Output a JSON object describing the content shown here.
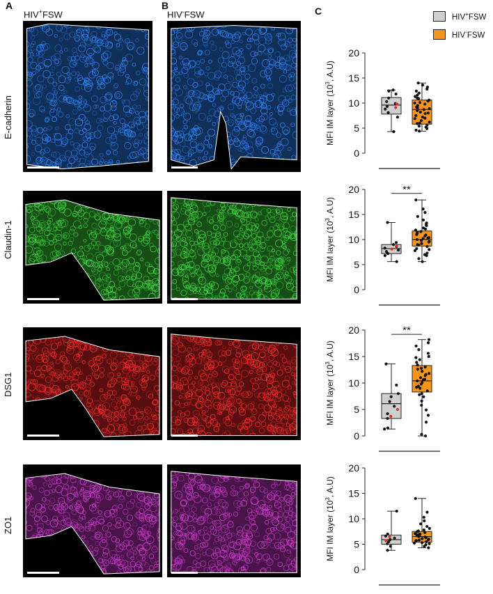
{
  "figure": {
    "panel_labels": [
      "A",
      "B",
      "C"
    ],
    "col_a_title": {
      "prefix": "HIV",
      "sup": "+",
      "suffix": "FSW"
    },
    "col_b_title": {
      "prefix": "HIV",
      "sup": "-",
      "suffix": "FSW"
    },
    "row_labels": [
      "E-cadherin",
      "Claudin-1",
      "DSG1",
      "ZO1"
    ],
    "stain_colors": {
      "E-cadherin": "#2f86ff",
      "Claudin-1": "#3ee03e",
      "DSG1": "#ff2a2a",
      "ZO1": "#d23ad2"
    },
    "legend": [
      {
        "prefix": "HIV",
        "sup": "+",
        "suffix": "FSW",
        "color": "#cfcfcf"
      },
      {
        "prefix": "HIV",
        "sup": "-",
        "suffix": "FSW",
        "color": "#f7941d"
      }
    ]
  },
  "chart_data": [
    {
      "type": "box",
      "marker": "E-cadherin",
      "ylabel": "MFI IM layer (10^3, A.U)",
      "ylim": [
        0,
        20
      ],
      "yticks": [
        0,
        5,
        10,
        15,
        20
      ],
      "significance": "",
      "groups": [
        {
          "name": "HIV+ FSW",
          "color": "#cfcfcf",
          "min": 4.3,
          "q1": 7.8,
          "median": 9.6,
          "q3": 11.1,
          "max": 12.6,
          "points": [
            4.3,
            7.2,
            8.1,
            8.8,
            9.3,
            9.9,
            10.3,
            11.0,
            11.8,
            12.4,
            12.6
          ],
          "highlight": [
            9.1,
            9.8
          ]
        },
        {
          "name": "HIV- FSW",
          "color": "#f7941d",
          "min": 4.4,
          "q1": 5.8,
          "median": 8.7,
          "q3": 10.6,
          "max": 14.0,
          "points": [
            4.4,
            4.6,
            4.9,
            5.2,
            5.4,
            5.6,
            5.9,
            6.2,
            6.5,
            6.9,
            7.2,
            7.5,
            7.9,
            8.2,
            8.5,
            8.7,
            8.9,
            9.2,
            9.5,
            9.8,
            10.1,
            10.4,
            10.6,
            10.9,
            11.3,
            11.6,
            12.0,
            12.4,
            12.8,
            13.2,
            13.6,
            14.0,
            6.0,
            7.0,
            8.0,
            9.0,
            10.0,
            11.0
          ]
        }
      ]
    },
    {
      "type": "box",
      "marker": "Claudin-1",
      "ylabel": "MFI IM layer (10^3, A.U)",
      "ylim": [
        0,
        20
      ],
      "yticks": [
        0,
        5,
        10,
        15,
        20
      ],
      "significance": "**",
      "groups": [
        {
          "name": "HIV+ FSW",
          "color": "#cfcfcf",
          "min": 5.6,
          "q1": 7.2,
          "median": 8.2,
          "q3": 9.0,
          "max": 13.4,
          "points": [
            5.6,
            6.8,
            7.2,
            7.6,
            7.9,
            8.3,
            8.6,
            9.0,
            9.4,
            13.4
          ],
          "highlight": [
            8.1,
            8.7
          ]
        },
        {
          "name": "HIV- FSW",
          "color": "#f7941d",
          "min": 5.6,
          "q1": 8.7,
          "median": 10.0,
          "q3": 11.7,
          "max": 17.9,
          "points": [
            5.6,
            6.2,
            6.8,
            7.3,
            7.8,
            8.2,
            8.6,
            8.9,
            9.2,
            9.5,
            9.8,
            10.0,
            10.2,
            10.4,
            10.7,
            11.0,
            11.3,
            11.6,
            11.9,
            12.3,
            12.8,
            13.3,
            13.9,
            14.6,
            15.4,
            16.1,
            17.9,
            9.0,
            9.6,
            10.3,
            10.9,
            11.4,
            8.0,
            12.1,
            7.0,
            13.0
          ]
        }
      ]
    },
    {
      "type": "box",
      "marker": "DSG1",
      "ylabel": "MFI IM layer (10^3, A.U)",
      "ylim": [
        0,
        20
      ],
      "yticks": [
        0,
        5,
        10,
        15,
        20
      ],
      "significance": "**",
      "groups": [
        {
          "name": "HIV+ FSW",
          "color": "#cfcfcf",
          "min": 1.3,
          "q1": 3.3,
          "median": 6.1,
          "q3": 8.0,
          "max": 13.6,
          "points": [
            1.3,
            1.5,
            3.3,
            4.2,
            5.6,
            6.5,
            7.4,
            8.0,
            9.6,
            13.6
          ],
          "highlight": [
            3.7,
            5.0
          ]
        },
        {
          "name": "HIV- FSW",
          "color": "#f7941d",
          "min": 0.0,
          "q1": 8.3,
          "median": 10.4,
          "q3": 13.3,
          "max": 18.2,
          "points": [
            0.0,
            0.3,
            2.6,
            3.9,
            4.9,
            5.8,
            6.6,
            7.4,
            8.0,
            8.5,
            9.0,
            9.4,
            9.8,
            10.1,
            10.4,
            10.7,
            11.0,
            11.4,
            11.8,
            12.2,
            12.6,
            13.0,
            13.4,
            13.9,
            14.4,
            15.0,
            15.6,
            16.3,
            17.0,
            17.6,
            18.2,
            9.2,
            10.6,
            11.6,
            12.8,
            7.8,
            14.8
          ]
        }
      ]
    },
    {
      "type": "box",
      "marker": "ZO1",
      "ylabel": "MFI IM layer (10^3, A.U)",
      "ylim": [
        0,
        20
      ],
      "yticks": [
        0,
        5,
        10,
        15,
        20
      ],
      "significance": "",
      "groups": [
        {
          "name": "HIV+ FSW",
          "color": "#cfcfcf",
          "min": 3.8,
          "q1": 5.0,
          "median": 5.9,
          "q3": 6.8,
          "max": 11.5,
          "points": [
            3.8,
            4.6,
            5.1,
            5.5,
            5.9,
            6.2,
            6.6,
            7.0,
            11.5
          ],
          "highlight": [
            5.7,
            6.4
          ]
        },
        {
          "name": "HIV- FSW",
          "color": "#f7941d",
          "min": 4.3,
          "q1": 5.4,
          "median": 6.5,
          "q3": 7.5,
          "max": 14.0,
          "points": [
            4.3,
            4.6,
            4.9,
            5.1,
            5.3,
            5.5,
            5.7,
            5.9,
            6.1,
            6.3,
            6.5,
            6.7,
            6.9,
            7.1,
            7.3,
            7.5,
            7.8,
            8.1,
            8.5,
            9.0,
            9.6,
            10.3,
            11.3,
            14.0,
            5.2,
            5.8,
            6.4,
            7.0,
            7.6,
            6.0,
            6.8,
            5.6
          ]
        }
      ]
    }
  ]
}
